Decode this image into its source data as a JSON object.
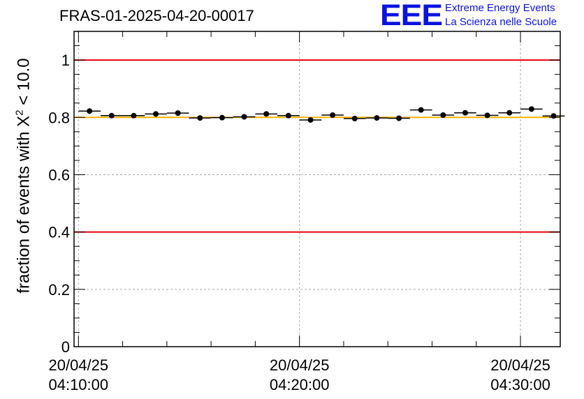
{
  "chart_data": {
    "type": "scatter",
    "title": "FRAS-01-2025-04-20-00017",
    "ylabel_prefix": "fraction of events with ",
    "ylabel_symbol": "X",
    "ylabel_exponent": "2",
    "ylabel_suffix": " < 10.0",
    "xlabel": "",
    "ylim": [
      0,
      1.1
    ],
    "yticks": [
      0,
      0.2,
      0.4,
      0.6,
      0.8,
      1
    ],
    "ytick_labels": [
      "0",
      "0.2",
      "0.4",
      "0.6",
      "0.8",
      "1"
    ],
    "xlim_minutes": [
      -0.2,
      21.8
    ],
    "xticks_minutes": [
      0,
      10,
      20
    ],
    "xtick_labels": [
      {
        "date": "20/04/25",
        "time": "04:10:00"
      },
      {
        "date": "20/04/25",
        "time": "04:20:00"
      },
      {
        "date": "20/04/25",
        "time": "04:30:00"
      }
    ],
    "grid": true,
    "bin_width_minutes": 1,
    "x_minutes": [
      0.5,
      1.5,
      2.5,
      3.5,
      4.5,
      5.5,
      6.5,
      7.5,
      8.5,
      9.5,
      10.5,
      11.5,
      12.5,
      13.5,
      14.5,
      15.5,
      16.5,
      17.5,
      18.5,
      19.5,
      20.5,
      21.5
    ],
    "values": [
      0.822,
      0.806,
      0.806,
      0.812,
      0.815,
      0.798,
      0.799,
      0.802,
      0.812,
      0.806,
      0.791,
      0.808,
      0.796,
      0.798,
      0.797,
      0.826,
      0.808,
      0.816,
      0.807,
      0.816,
      0.829,
      0.805
    ],
    "reference_lines": [
      {
        "name": "upper-limit",
        "y": 1.0,
        "color": "#e8000b"
      },
      {
        "name": "lower-limit",
        "y": 0.4,
        "color": "#e8000b"
      },
      {
        "name": "mean",
        "y": 0.8,
        "color": "#ffb400"
      }
    ]
  },
  "logo": {
    "mark": "EEE",
    "line1": "Extreme Energy Events",
    "line2": "La Scienza nelle Scuole",
    "color": "#0b13e0"
  }
}
